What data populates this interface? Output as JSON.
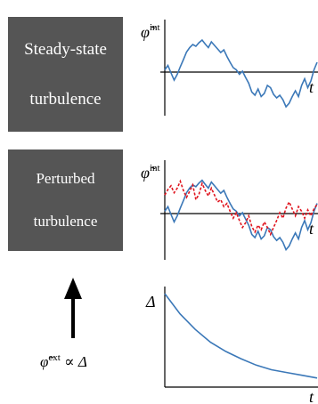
{
  "colors": {
    "box_fill": "#555555",
    "box_text": "#ffffff",
    "series_intrinsic": "#3b78b8",
    "series_perturbed": "#e0141e",
    "decay": "#3b78b8",
    "axes": "#000000"
  },
  "boxes": {
    "steady": {
      "line1": "Steady-state",
      "line2": "turbulence"
    },
    "perturbed": {
      "line1": "Perturbed",
      "line2": "turbulence"
    }
  },
  "forcing_label": {
    "phi": "φ̃",
    "sup": "ext",
    "rel": " ∝ ",
    "delta": "Δ"
  },
  "panels": [
    {
      "id": "steady",
      "ylabel": "φ̃",
      "ylabel_sup": "int",
      "xlabel": "t"
    },
    {
      "id": "perturbed",
      "ylabel": "φ̃",
      "ylabel_sup": "int",
      "xlabel": "t"
    },
    {
      "id": "decay",
      "ylabel": "Δ",
      "xlabel": "t"
    }
  ],
  "chart_data": [
    {
      "type": "line",
      "title": "",
      "xlabel": "t",
      "ylabel": "φ̃int",
      "series": [
        {
          "values": [
            0.05,
            0.15,
            -0.02,
            -0.18,
            -0.05,
            0.12,
            0.28,
            0.45,
            0.55,
            0.62,
            0.58,
            0.66,
            0.72,
            0.63,
            0.55,
            0.68,
            0.6,
            0.52,
            0.44,
            0.5,
            0.35,
            0.22,
            0.1,
            0.05,
            -0.05,
            0.02,
            -0.12,
            -0.25,
            -0.45,
            -0.52,
            -0.38,
            -0.55,
            -0.48,
            -0.3,
            -0.35,
            -0.5,
            -0.58,
            -0.52,
            -0.62,
            -0.78,
            -0.7,
            -0.55,
            -0.42,
            -0.55,
            -0.3,
            -0.15,
            -0.35,
            -0.2,
            0.05,
            0.22
          ]
        }
      ]
    },
    {
      "type": "line",
      "title": "",
      "xlabel": "t",
      "ylabel": "φ̃int",
      "series": [
        {
          "values": [
            0.05,
            0.15,
            -0.02,
            -0.18,
            -0.05,
            0.12,
            0.28,
            0.45,
            0.55,
            0.62,
            0.58,
            0.66,
            0.72,
            0.63,
            0.55,
            0.68,
            0.6,
            0.52,
            0.44,
            0.5,
            0.35,
            0.22,
            0.1,
            0.05,
            -0.05,
            0.02,
            -0.12,
            -0.25,
            -0.45,
            -0.52,
            -0.38,
            -0.55,
            -0.48,
            -0.3,
            -0.35,
            -0.5,
            -0.58,
            -0.52,
            -0.62,
            -0.78,
            -0.7,
            -0.55,
            -0.42,
            -0.55,
            -0.3,
            -0.15,
            -0.35,
            -0.2,
            0.05,
            0.22
          ]
        },
        {
          "values": [
            0.4,
            0.52,
            0.6,
            0.45,
            0.55,
            0.7,
            0.5,
            0.35,
            0.48,
            0.62,
            0.3,
            0.42,
            0.65,
            0.5,
            0.38,
            0.55,
            0.4,
            0.25,
            0.3,
            0.15,
            0.22,
            0.05,
            -0.1,
            0.02,
            -0.15,
            -0.3,
            -0.2,
            -0.05,
            -0.28,
            -0.4,
            -0.25,
            -0.35,
            -0.18,
            -0.3,
            -0.45,
            -0.3,
            -0.15,
            0.02,
            -0.1,
            0.12,
            0.25,
            0.1,
            -0.05,
            0.15,
            0.05,
            -0.1,
            0.08,
            -0.05,
            0.1,
            0.2
          ]
        }
      ]
    },
    {
      "type": "line",
      "title": "",
      "xlabel": "t",
      "ylabel": "Δ",
      "x": [
        0,
        0.5,
        1,
        1.5,
        2,
        2.5,
        3,
        3.5,
        4,
        4.5,
        5
      ],
      "series": [
        {
          "values": [
            1,
            0.78,
            0.61,
            0.47,
            0.37,
            0.29,
            0.22,
            0.17,
            0.14,
            0.11,
            0.08
          ]
        }
      ]
    }
  ]
}
